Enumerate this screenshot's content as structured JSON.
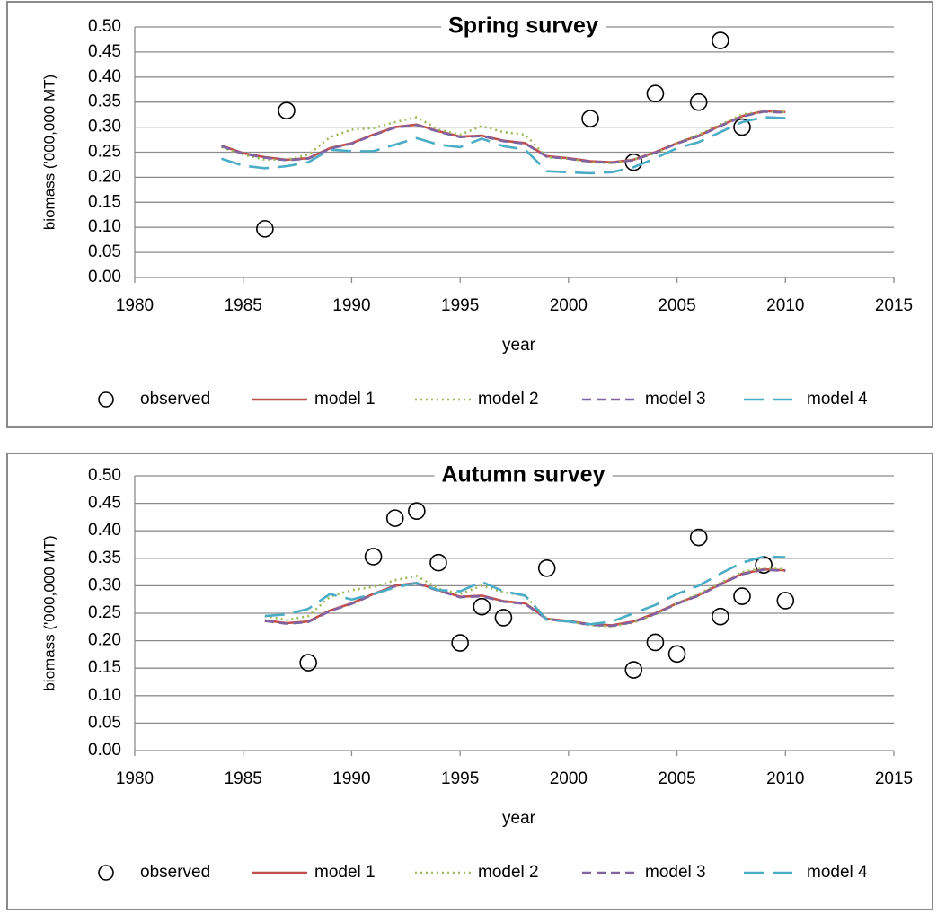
{
  "chart_data": [
    {
      "type": "line",
      "title": "Spring survey",
      "xlabel": "year",
      "ylabel": "biomass ('000,000 MT)",
      "xlim": [
        1980,
        2015
      ],
      "xticks": [
        1980,
        1985,
        1990,
        1995,
        2000,
        2005,
        2010,
        2015
      ],
      "ylim": [
        0,
        0.5
      ],
      "yticks": [
        {
          "value": 0,
          "label": "0.00"
        },
        0.05,
        {
          "value": 0.1,
          "label": "0.10"
        },
        0.15,
        {
          "value": 0.2,
          "label": "0.20"
        },
        0.25,
        {
          "value": 0.3,
          "label": "0.30"
        },
        0.35,
        {
          "value": 0.4,
          "label": "0.40"
        },
        0.45,
        {
          "value": 0.5,
          "label": "0.50"
        }
      ],
      "grid": true,
      "legend": "bottom",
      "series": [
        {
          "name": "observed",
          "color": "#000000",
          "style": "markers",
          "x": [
            1986,
            1987,
            2001,
            2003,
            2004,
            2006,
            2007,
            2008
          ],
          "values": [
            0.097,
            0.333,
            0.317,
            0.23,
            0.367,
            0.35,
            0.473,
            0.3
          ]
        },
        {
          "name": "model 1",
          "color": "#c0504d",
          "style": "solid",
          "x": [
            1984,
            1985,
            1986,
            1987,
            1988,
            1989,
            1990,
            1991,
            1992,
            1993,
            1994,
            1995,
            1996,
            1997,
            1998,
            1999,
            2000,
            2001,
            2002,
            2003,
            2004,
            2005,
            2006,
            2007,
            2008,
            2009,
            2010
          ],
          "values": [
            0.263,
            0.248,
            0.24,
            0.235,
            0.238,
            0.258,
            0.268,
            0.285,
            0.3,
            0.305,
            0.292,
            0.281,
            0.283,
            0.273,
            0.268,
            0.242,
            0.238,
            0.232,
            0.23,
            0.235,
            0.25,
            0.268,
            0.283,
            0.303,
            0.322,
            0.332,
            0.33
          ]
        },
        {
          "name": "model 2",
          "color": "#9bbb59",
          "style": "dotted",
          "x": [
            1984,
            1985,
            1986,
            1987,
            1988,
            1989,
            1990,
            1991,
            1992,
            1993,
            1994,
            1995,
            1996,
            1997,
            1998,
            1999,
            2000,
            2001,
            2002,
            2003,
            2004,
            2005,
            2006,
            2007,
            2008,
            2009,
            2010
          ],
          "values": [
            0.26,
            0.245,
            0.235,
            0.235,
            0.245,
            0.28,
            0.295,
            0.298,
            0.31,
            0.32,
            0.295,
            0.285,
            0.302,
            0.29,
            0.285,
            0.24,
            0.237,
            0.23,
            0.228,
            0.235,
            0.248,
            0.268,
            0.285,
            0.305,
            0.325,
            0.332,
            0.33
          ]
        },
        {
          "name": "model 3",
          "color": "#8064a2",
          "style": "dashed",
          "x": [
            1984,
            1985,
            1986,
            1987,
            1988,
            1989,
            1990,
            1991,
            1992,
            1993,
            1994,
            1995,
            1996,
            1997,
            1998,
            1999,
            2000,
            2001,
            2002,
            2003,
            2004,
            2005,
            2006,
            2007,
            2008,
            2009,
            2010
          ],
          "values": [
            0.262,
            0.247,
            0.239,
            0.234,
            0.237,
            0.257,
            0.267,
            0.284,
            0.299,
            0.304,
            0.291,
            0.28,
            0.282,
            0.272,
            0.267,
            0.241,
            0.237,
            0.231,
            0.229,
            0.234,
            0.249,
            0.267,
            0.282,
            0.302,
            0.321,
            0.331,
            0.329
          ]
        },
        {
          "name": "model 4",
          "color": "#4bacc6",
          "style": "longdash",
          "x": [
            1984,
            1985,
            1986,
            1987,
            1988,
            1989,
            1990,
            1991,
            1992,
            1993,
            1994,
            1995,
            1996,
            1997,
            1998,
            1999,
            2000,
            2001,
            2002,
            2003,
            2004,
            2005,
            2006,
            2007,
            2008,
            2009,
            2010
          ],
          "values": [
            0.237,
            0.223,
            0.218,
            0.222,
            0.23,
            0.255,
            0.252,
            0.252,
            0.265,
            0.278,
            0.265,
            0.26,
            0.277,
            0.262,
            0.255,
            0.212,
            0.21,
            0.208,
            0.21,
            0.22,
            0.238,
            0.258,
            0.27,
            0.29,
            0.31,
            0.32,
            0.318
          ]
        }
      ]
    },
    {
      "type": "line",
      "title": "Autumn survey",
      "xlabel": "year",
      "ylabel": "biomass ('000,000 MT)",
      "xlim": [
        1980,
        2015
      ],
      "xticks": [
        1980,
        1985,
        1990,
        1995,
        2000,
        2005,
        2010,
        2015
      ],
      "ylim": [
        0,
        0.5
      ],
      "yticks": [
        {
          "value": 0,
          "label": "0.00"
        },
        0.05,
        {
          "value": 0.1,
          "label": "0.10"
        },
        0.15,
        {
          "value": 0.2,
          "label": "0.20"
        },
        0.25,
        {
          "value": 0.3,
          "label": "0.30"
        },
        0.35,
        {
          "value": 0.4,
          "label": "0.40"
        },
        0.45,
        {
          "value": 0.5,
          "label": "0.50"
        }
      ],
      "grid": true,
      "legend": "bottom",
      "series": [
        {
          "name": "observed",
          "color": "#000000",
          "style": "markers",
          "x": [
            1988,
            1991,
            1992,
            1993,
            1994,
            1995,
            1996,
            1997,
            1999,
            2003,
            2004,
            2005,
            2006,
            2007,
            2008,
            2009,
            2010
          ],
          "values": [
            0.16,
            0.353,
            0.423,
            0.436,
            0.342,
            0.196,
            0.262,
            0.242,
            0.332,
            0.147,
            0.197,
            0.176,
            0.388,
            0.244,
            0.281,
            0.338,
            0.273
          ]
        },
        {
          "name": "model 1",
          "color": "#c0504d",
          "style": "solid",
          "x": [
            1986,
            1987,
            1988,
            1989,
            1990,
            1991,
            1992,
            1993,
            1994,
            1995,
            1996,
            1997,
            1998,
            1999,
            2000,
            2001,
            2002,
            2003,
            2004,
            2005,
            2006,
            2007,
            2008,
            2009,
            2010
          ],
          "values": [
            0.237,
            0.232,
            0.235,
            0.255,
            0.268,
            0.285,
            0.3,
            0.305,
            0.292,
            0.28,
            0.282,
            0.272,
            0.268,
            0.24,
            0.236,
            0.23,
            0.228,
            0.235,
            0.25,
            0.268,
            0.283,
            0.303,
            0.322,
            0.33,
            0.328
          ]
        },
        {
          "name": "model 2",
          "color": "#9bbb59",
          "style": "dotted",
          "x": [
            1986,
            1987,
            1988,
            1989,
            1990,
            1991,
            1992,
            1993,
            1994,
            1995,
            1996,
            1997,
            1998,
            1999,
            2000,
            2001,
            2002,
            2003,
            2004,
            2005,
            2006,
            2007,
            2008,
            2009,
            2010
          ],
          "values": [
            0.245,
            0.238,
            0.245,
            0.28,
            0.292,
            0.298,
            0.31,
            0.318,
            0.295,
            0.285,
            0.3,
            0.288,
            0.282,
            0.24,
            0.235,
            0.228,
            0.226,
            0.233,
            0.248,
            0.268,
            0.285,
            0.305,
            0.325,
            0.332,
            0.33
          ]
        },
        {
          "name": "model 3",
          "color": "#8064a2",
          "style": "dashed",
          "x": [
            1986,
            1987,
            1988,
            1989,
            1990,
            1991,
            1992,
            1993,
            1994,
            1995,
            1996,
            1997,
            1998,
            1999,
            2000,
            2001,
            2002,
            2003,
            2004,
            2005,
            2006,
            2007,
            2008,
            2009,
            2010
          ],
          "values": [
            0.236,
            0.231,
            0.234,
            0.254,
            0.267,
            0.284,
            0.299,
            0.304,
            0.291,
            0.279,
            0.281,
            0.271,
            0.267,
            0.239,
            0.235,
            0.229,
            0.227,
            0.234,
            0.249,
            0.267,
            0.282,
            0.302,
            0.321,
            0.329,
            0.327
          ]
        },
        {
          "name": "model 4",
          "color": "#4bacc6",
          "style": "longdash",
          "x": [
            1986,
            1987,
            1988,
            1989,
            1990,
            1991,
            1992,
            1993,
            1994,
            1995,
            1996,
            1997,
            1998,
            1999,
            2000,
            2001,
            2002,
            2003,
            2004,
            2005,
            2006,
            2007,
            2008,
            2009,
            2010
          ],
          "values": [
            0.245,
            0.248,
            0.258,
            0.285,
            0.275,
            0.285,
            0.297,
            0.305,
            0.292,
            0.29,
            0.307,
            0.29,
            0.282,
            0.238,
            0.235,
            0.23,
            0.235,
            0.25,
            0.265,
            0.285,
            0.3,
            0.322,
            0.342,
            0.353,
            0.352
          ]
        }
      ]
    }
  ]
}
